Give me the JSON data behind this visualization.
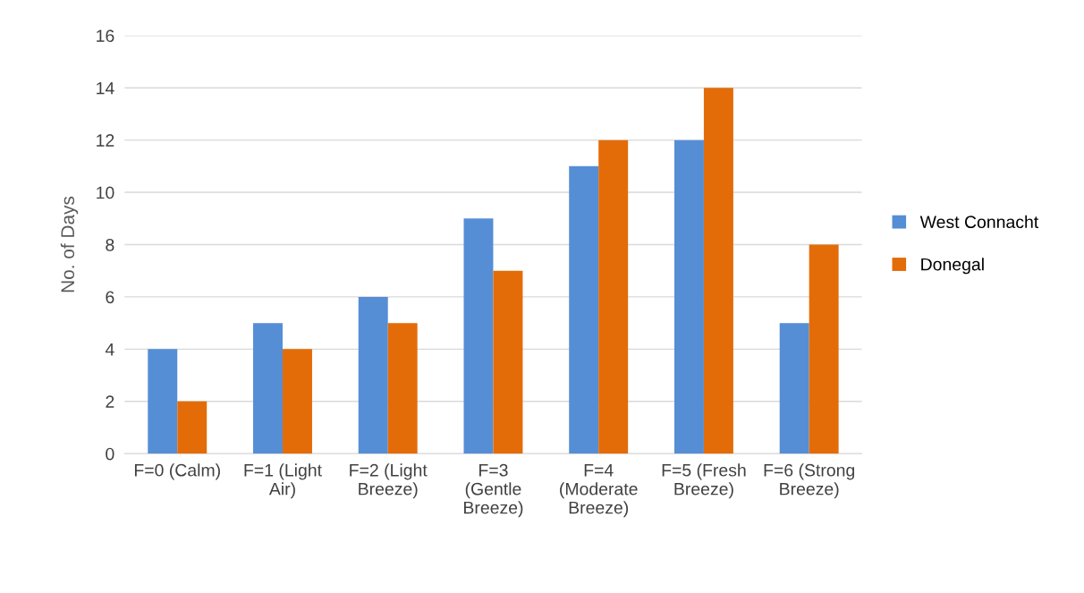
{
  "chart_data": {
    "type": "bar",
    "ylabel": "No. of Days",
    "categories": [
      "F=0 (Calm)",
      "F=1 (Light\nAir)",
      "F=2 (Light\nBreeze)",
      "F=3\n(Gentle\nBreeze)",
      "F=4\n(Moderate\nBreeze)",
      "F=5 (Fresh\nBreeze)",
      "F=6 (Strong\nBreeze)"
    ],
    "series": [
      {
        "name": "West Connacht",
        "color": "#558ed5",
        "values": [
          4,
          5,
          6,
          9,
          11,
          12,
          5
        ]
      },
      {
        "name": "Donegal",
        "color": "#e36c09",
        "values": [
          2,
          4,
          5,
          7,
          12,
          14,
          8
        ]
      }
    ],
    "ylim": [
      0,
      16
    ],
    "yticks": [
      0,
      2,
      4,
      6,
      8,
      10,
      12,
      14,
      16
    ],
    "grid": "y",
    "legend": "right"
  }
}
